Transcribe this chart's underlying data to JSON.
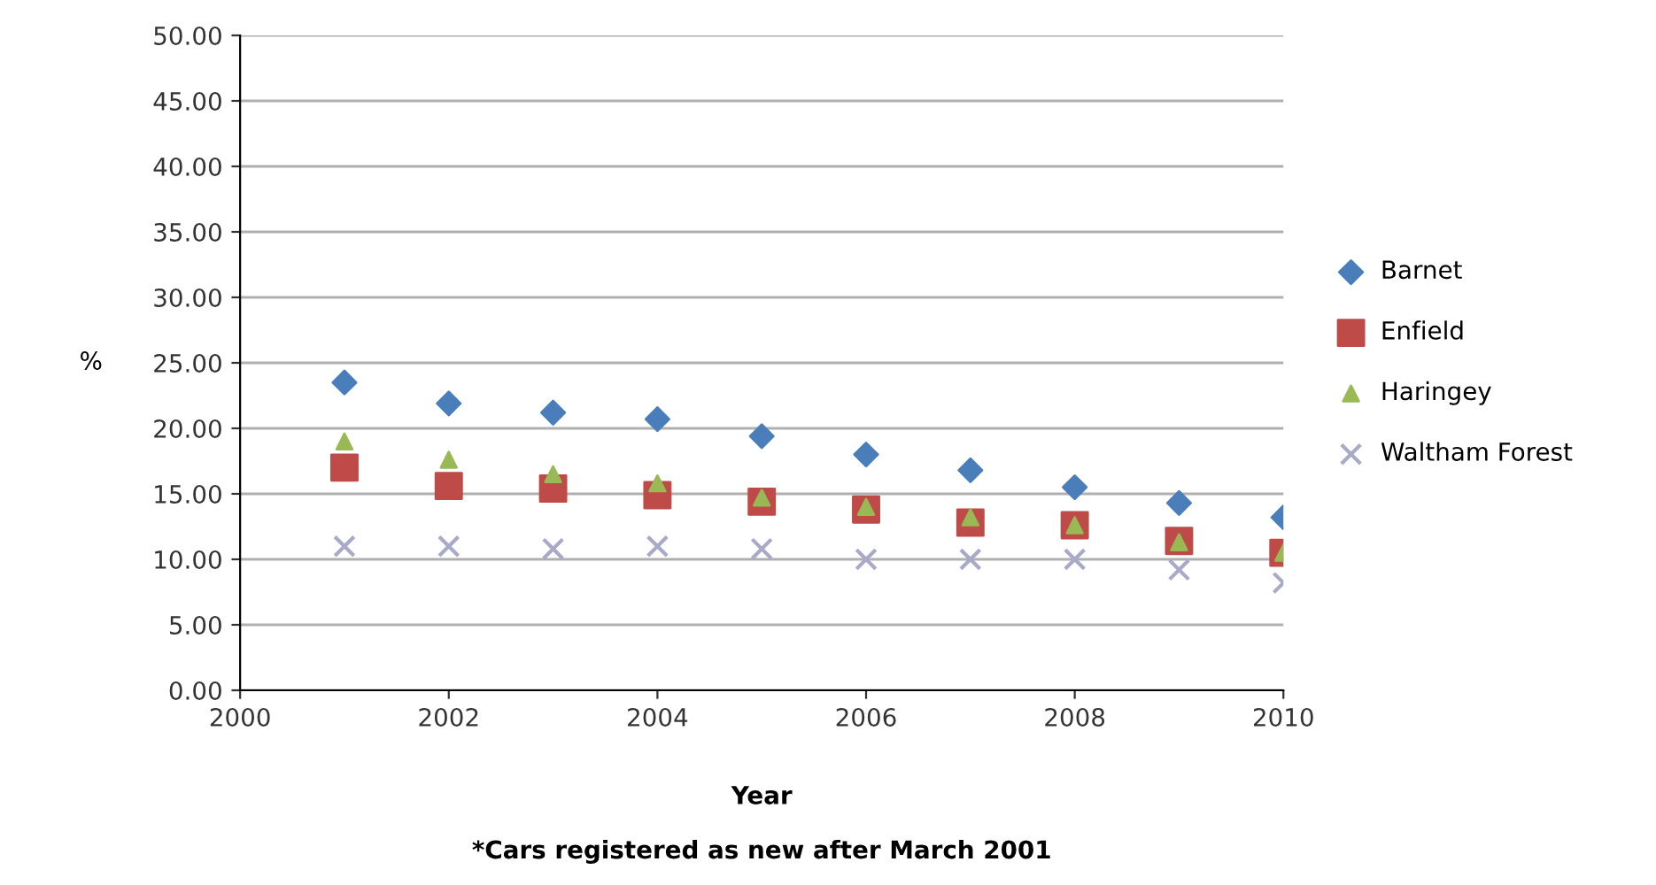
{
  "chart_data": {
    "type": "scatter",
    "xlabel": "Year",
    "ylabel": "%",
    "annotations": [
      "*Cars registered as new after March 2001"
    ],
    "x": [
      2001,
      2002,
      2003,
      2004,
      2005,
      2006,
      2007,
      2008,
      2009,
      2010
    ],
    "series": [
      {
        "name": "Barnet",
        "color": "#4a7ebb",
        "marker": "diamond",
        "values": [
          23.5,
          21.9,
          21.2,
          20.7,
          19.4,
          18.0,
          16.8,
          15.5,
          14.3,
          13.2
        ]
      },
      {
        "name": "Enfield",
        "color": "#be4b48",
        "marker": "square",
        "values": [
          17.0,
          15.6,
          15.4,
          14.9,
          14.4,
          13.8,
          12.8,
          12.6,
          11.4,
          10.5
        ]
      },
      {
        "name": "Haringey",
        "color": "#98b954",
        "marker": "triangle",
        "values": [
          19.0,
          17.6,
          16.5,
          15.8,
          14.7,
          14.0,
          13.2,
          12.6,
          11.3,
          10.5
        ]
      },
      {
        "name": "Waltham Forest",
        "color": "#a9a9c8",
        "marker": "cross",
        "values": [
          11.0,
          11.0,
          10.8,
          11.0,
          10.8,
          10.0,
          10.0,
          10.0,
          9.2,
          8.2
        ]
      }
    ],
    "xlim": [
      2000,
      2010
    ],
    "xticks": [
      2000,
      2002,
      2004,
      2006,
      2008,
      2010
    ],
    "ylim": [
      0,
      50
    ],
    "yticks": [
      {
        "value": 0,
        "label": "0.00"
      },
      {
        "value": 5,
        "label": "5.00"
      },
      {
        "value": 10,
        "label": "10.00"
      },
      {
        "value": 15,
        "label": "15.00"
      },
      {
        "value": 20,
        "label": "20.00"
      },
      {
        "value": 25,
        "label": "25.00"
      },
      {
        "value": 30,
        "label": "30.00"
      },
      {
        "value": 35,
        "label": "35.00"
      },
      {
        "value": 40,
        "label": "40.00"
      },
      {
        "value": 45,
        "label": "45.00"
      },
      {
        "value": 50,
        "label": "50.00"
      }
    ],
    "grid": "y",
    "legend": "right"
  }
}
